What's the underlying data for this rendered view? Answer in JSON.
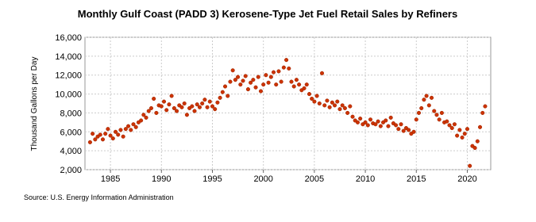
{
  "chart_data": {
    "type": "scatter",
    "title": "Monthly Gulf Coast (PADD 3) Kerosene-Type Jet Fuel Retail Sales by Refiners",
    "y_label": "Thousand Gallons per Day",
    "source": "Source: U.S. Energy Information Administration",
    "color": "#cc3300",
    "grid": true,
    "xlim": [
      1982.5,
      2022.3
    ],
    "xticks": [
      1985,
      1990,
      1995,
      2000,
      2005,
      2010,
      2015,
      2020
    ],
    "ylim": [
      2000,
      16000
    ],
    "yticks": [
      {
        "value": 2000,
        "label": "2,000"
      },
      {
        "value": 4000,
        "label": "4,000"
      },
      {
        "value": 6000,
        "label": "6,000"
      },
      {
        "value": 8000,
        "label": "8,000"
      },
      {
        "value": 10000,
        "label": "10,000"
      },
      {
        "value": 12000,
        "label": "12,000"
      },
      {
        "value": 14000,
        "label": "14,000"
      },
      {
        "value": 16000,
        "label": "16,000"
      }
    ],
    "x": [
      1983,
      1983.25,
      1983.5,
      1983.75,
      1984,
      1984.25,
      1984.5,
      1984.75,
      1985,
      1985.25,
      1985.5,
      1985.75,
      1986,
      1986.25,
      1986.5,
      1986.75,
      1987,
      1987.25,
      1987.5,
      1987.75,
      1988,
      1988.25,
      1988.5,
      1988.75,
      1989,
      1989.25,
      1989.5,
      1989.75,
      1990,
      1990.25,
      1990.5,
      1990.75,
      1991,
      1991.25,
      1991.5,
      1991.75,
      1992,
      1992.25,
      1992.5,
      1992.75,
      1993,
      1993.25,
      1993.5,
      1993.75,
      1994,
      1994.25,
      1994.5,
      1994.75,
      1995,
      1995.25,
      1995.5,
      1995.75,
      1996,
      1996.25,
      1996.5,
      1996.75,
      1997,
      1997.25,
      1997.5,
      1997.75,
      1998,
      1998.25,
      1998.5,
      1998.75,
      1999,
      1999.25,
      1999.5,
      1999.75,
      2000,
      2000.25,
      2000.5,
      2000.75,
      2001,
      2001.25,
      2001.5,
      2001.75,
      2002,
      2002.25,
      2002.5,
      2002.75,
      2003,
      2003.25,
      2003.5,
      2003.75,
      2004,
      2004.25,
      2004.5,
      2004.75,
      2005,
      2005.25,
      2005.5,
      2005.75,
      2006,
      2006.25,
      2006.5,
      2006.75,
      2007,
      2007.25,
      2007.5,
      2007.75,
      2008,
      2008.25,
      2008.5,
      2008.75,
      2009,
      2009.25,
      2009.5,
      2009.75,
      2010,
      2010.25,
      2010.5,
      2010.75,
      2011,
      2011.25,
      2011.5,
      2011.75,
      2012,
      2012.25,
      2012.5,
      2012.75,
      2013,
      2013.25,
      2013.5,
      2013.75,
      2014,
      2014.25,
      2014.5,
      2014.75,
      2015,
      2015.25,
      2015.5,
      2015.75,
      2016,
      2016.25,
      2016.5,
      2016.75,
      2017,
      2017.25,
      2017.5,
      2017.75,
      2018,
      2018.25,
      2018.5,
      2018.75,
      2019,
      2019.25,
      2019.5,
      2019.75,
      2020,
      2020.25,
      2020.5,
      2020.75,
      2021,
      2021.25,
      2021.5,
      2021.75
    ],
    "values": [
      4900,
      5800,
      5200,
      5500,
      5700,
      5200,
      5800,
      6300,
      5600,
      5300,
      6000,
      5700,
      6200,
      5500,
      6300,
      6600,
      6200,
      6800,
      6500,
      7000,
      7200,
      7800,
      7500,
      8200,
      8500,
      9500,
      8000,
      8800,
      8700,
      9200,
      8300,
      8900,
      9800,
      8500,
      8200,
      8800,
      8600,
      9000,
      7800,
      8500,
      8700,
      8200,
      8900,
      8600,
      9000,
      9400,
      8600,
      9200,
      8700,
      8400,
      9100,
      9600,
      10200,
      10800,
      9800,
      11300,
      12500,
      11500,
      11800,
      11000,
      11400,
      11900,
      10500,
      11200,
      11500,
      10700,
      11800,
      10300,
      11000,
      12000,
      11200,
      11800,
      12300,
      11000,
      12400,
      11300,
      12800,
      13600,
      12700,
      11300,
      10800,
      11500,
      11000,
      10400,
      10600,
      11000,
      10000,
      9500,
      9200,
      9800,
      9000,
      12200,
      8800,
      9300,
      8600,
      9100,
      8800,
      9200,
      8400,
      8800,
      8500,
      8000,
      8700,
      7600,
      7200,
      7000,
      7400,
      6800,
      7000,
      6700,
      7300,
      6900,
      6800,
      7100,
      6600,
      7000,
      7200,
      6600,
      7500,
      6900,
      6700,
      6300,
      6800,
      6100,
      6400,
      6200,
      5800,
      6000,
      7300,
      8000,
      8500,
      9400,
      9800,
      8800,
      9600,
      8200,
      7800,
      7300,
      8000,
      7000,
      7100,
      6700,
      6400,
      6800,
      5600,
      6200,
      5400,
      5800,
      6300,
      2400,
      4500,
      4300,
      5000,
      6500,
      8000,
      8700
    ]
  }
}
